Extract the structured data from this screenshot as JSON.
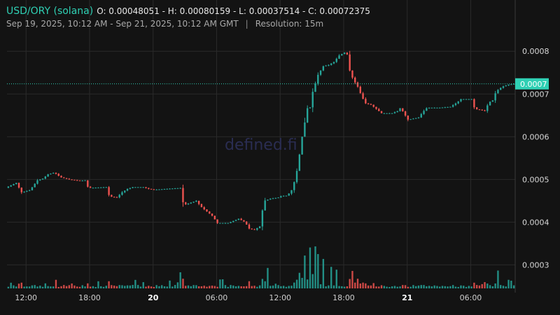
{
  "header": {
    "pair": "USD/ORY (solana)",
    "ohlc": "O: 0.00048051 - H: 0.00080159 - L: 0.00037514 - C: 0.00072375",
    "range": "Sep 19, 2025, 10:12 AM - Sep 21, 2025, 10:12 AM GMT",
    "separator": "|",
    "resolution": "Resolution: 15m"
  },
  "watermark": "defined.fi",
  "colors": {
    "background": "#131313",
    "up": "#26a69a",
    "down": "#ef5350",
    "accent": "#2fd0b4",
    "grid": "#2a2a2a"
  },
  "chart_data": {
    "type": "candlestick",
    "resolution": "15m",
    "y_axis": {
      "ticks": [
        0.0003,
        0.0004,
        0.0005,
        0.0006,
        0.0007,
        0.0008
      ],
      "tick_labels": [
        "0.0003",
        "0.0004",
        "0.0005",
        "0.0006",
        "0.0007",
        "0.0008"
      ],
      "range": [
        0.000245,
        0.00092
      ]
    },
    "x_axis": {
      "tick_labels": [
        "12:00",
        "18:00",
        "20",
        "06:00",
        "12:00",
        "18:00",
        "21",
        "06:00"
      ],
      "bold_labels": [
        "20",
        "21"
      ],
      "range_hours": [
        0,
        48
      ]
    },
    "current_price": {
      "value": 0.00072375,
      "label": "0.0007"
    },
    "close_path": [
      [
        0,
        0.00048051
      ],
      [
        1.0,
        0.000492
      ],
      [
        1.5,
        0.00047
      ],
      [
        2.3,
        0.000475
      ],
      [
        2.6,
        0.000485
      ],
      [
        3.0,
        0.000498
      ],
      [
        3.5,
        0.000502
      ],
      [
        4.0,
        0.000512
      ],
      [
        4.6,
        0.000516
      ],
      [
        5.2,
        0.000505
      ],
      [
        6.0,
        0.0005
      ],
      [
        7.0,
        0.000497
      ],
      [
        7.5,
        0.000498
      ],
      [
        7.8,
        0.00048
      ],
      [
        9.5,
        0.000482
      ],
      [
        9.8,
        0.00046
      ],
      [
        10.5,
        0.000458
      ],
      [
        11.0,
        0.00047
      ],
      [
        11.5,
        0.000478
      ],
      [
        12.0,
        0.000482
      ],
      [
        13.0,
        0.000482
      ],
      [
        13.5,
        0.000478
      ],
      [
        14.0,
        0.000476
      ],
      [
        16.5,
        0.00048
      ],
      [
        16.8,
        0.00044
      ],
      [
        18.0,
        0.00045
      ],
      [
        18.5,
        0.000435
      ],
      [
        19.5,
        0.000415
      ],
      [
        20.0,
        0.000398
      ],
      [
        21.0,
        0.000398
      ],
      [
        22.0,
        0.000408
      ],
      [
        22.6,
        0.0004
      ],
      [
        23.0,
        0.000385
      ],
      [
        23.5,
        0.000382
      ],
      [
        24.0,
        0.00039
      ],
      [
        24.4,
        0.00045
      ],
      [
        25.0,
        0.000455
      ],
      [
        25.8,
        0.000458
      ],
      [
        26.1,
        0.000462
      ],
      [
        26.6,
        0.000462
      ],
      [
        27.0,
        0.000475
      ],
      [
        27.4,
        0.000505
      ],
      [
        27.7,
        0.00055
      ],
      [
        28.0,
        0.0006
      ],
      [
        28.3,
        0.00064
      ],
      [
        28.6,
        0.00068
      ],
      [
        28.8,
        0.000665
      ],
      [
        29.0,
        0.000705
      ],
      [
        29.2,
        0.00072
      ],
      [
        29.5,
        0.000745
      ],
      [
        30.0,
        0.000765
      ],
      [
        30.5,
        0.000768
      ],
      [
        31.0,
        0.000775
      ],
      [
        31.5,
        0.00079
      ],
      [
        32.0,
        0.000797
      ],
      [
        32.2,
        0.0008
      ],
      [
        32.5,
        0.000755
      ],
      [
        32.8,
        0.000735
      ],
      [
        33.3,
        0.000715
      ],
      [
        33.6,
        0.000695
      ],
      [
        34.0,
        0.000678
      ],
      [
        34.5,
        0.000675
      ],
      [
        35.0,
        0.000665
      ],
      [
        35.5,
        0.000655
      ],
      [
        36.5,
        0.000655
      ],
      [
        37.0,
        0.00066
      ],
      [
        37.3,
        0.000668
      ],
      [
        37.6,
        0.000655
      ],
      [
        38.0,
        0.00064
      ],
      [
        39.0,
        0.000645
      ],
      [
        39.4,
        0.000658
      ],
      [
        39.8,
        0.000668
      ],
      [
        41.0,
        0.000668
      ],
      [
        42.0,
        0.00067
      ],
      [
        42.5,
        0.000678
      ],
      [
        43.0,
        0.000688
      ],
      [
        44.0,
        0.000688
      ],
      [
        44.3,
        0.000665
      ],
      [
        45.0,
        0.000662
      ],
      [
        45.3,
        0.00066
      ],
      [
        45.6,
        0.00068
      ],
      [
        46.0,
        0.000685
      ],
      [
        46.3,
        0.000705
      ],
      [
        46.6,
        0.000712
      ],
      [
        47.0,
        0.000718
      ],
      [
        47.5,
        0.000722
      ],
      [
        48.0,
        0.00072375
      ]
    ],
    "volume_spikes": [
      [
        28.5,
        9
      ],
      [
        29.0,
        10
      ],
      [
        29.3,
        8
      ],
      [
        28.0,
        6
      ],
      [
        29.7,
        6
      ],
      [
        30.5,
        5
      ],
      [
        16.3,
        4.5
      ],
      [
        24.5,
        6
      ],
      [
        31.0,
        4
      ],
      [
        32.5,
        4
      ],
      [
        46.3,
        4
      ],
      [
        12.0,
        2
      ],
      [
        33.0,
        2
      ]
    ]
  }
}
